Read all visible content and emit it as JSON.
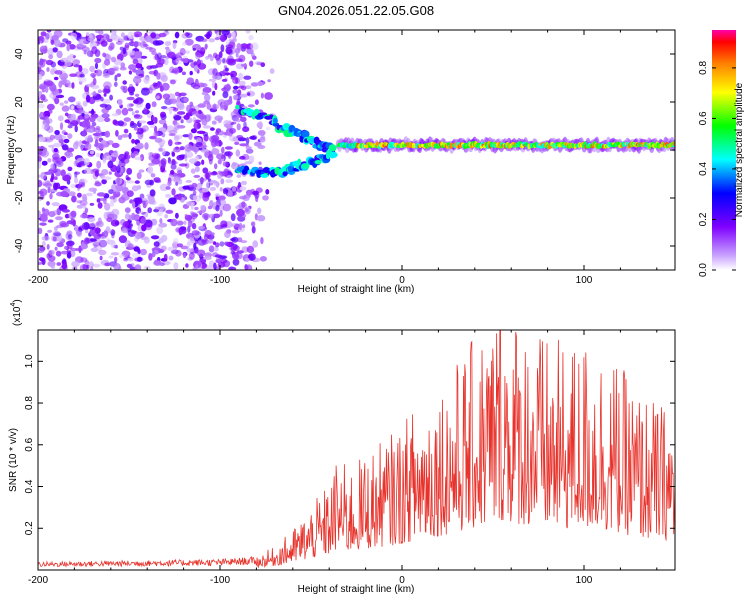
{
  "title": "GN04.2026.051.22.05.G08",
  "chart_data": [
    {
      "type": "heatmap",
      "name": "spectrogram",
      "xlabel": "Height of straight line (km)",
      "ylabel": "Frequency (Hz)",
      "xlim": [
        -200,
        150
      ],
      "ylim": [
        -50,
        50
      ],
      "xticks": [
        -200,
        -100,
        0,
        100
      ],
      "yticks": [
        40,
        20,
        0,
        -20,
        -40
      ],
      "colorbar": {
        "label": "Normalized spectral amplitude",
        "range": [
          0.0,
          0.95
        ],
        "ticks": [
          0.8,
          0.6,
          0.4,
          0.2,
          0.0
        ],
        "colors": [
          "#ffffff",
          "#7f00ff",
          "#0000ff",
          "#00ffff",
          "#00ff00",
          "#ffff00",
          "#ff8000",
          "#ff0000",
          "#ff00aa"
        ]
      },
      "features": [
        {
          "name": "noise scatter",
          "x_range": [
            -200,
            -70
          ],
          "y_range": [
            -50,
            50
          ],
          "amplitude": 0.1
        },
        {
          "name": "upper branch",
          "points": [
            [
              -90,
              18
            ],
            [
              -75,
              14
            ],
            [
              -65,
              9
            ],
            [
              -55,
              6
            ],
            [
              -45,
              2
            ],
            [
              -38,
              0
            ]
          ]
        },
        {
          "name": "lower branch",
          "points": [
            [
              -90,
              -8
            ],
            [
              -75,
              -10
            ],
            [
              -65,
              -9
            ],
            [
              -55,
              -6
            ],
            [
              -45,
              -4
            ],
            [
              -38,
              -2
            ]
          ]
        },
        {
          "name": "direct signal",
          "x_range": [
            -35,
            150
          ],
          "frequency": 2
        }
      ]
    },
    {
      "type": "line",
      "name": "snr",
      "xlabel": "Height of straight line (km)",
      "ylabel": "SNR (10 * v/v)",
      "scale_label": "(x10",
      "scale_exponent": "4",
      "xlim": [
        -200,
        150
      ],
      "ylim": [
        0,
        1.15
      ],
      "xticks": [
        -200,
        -100,
        0,
        100
      ],
      "yticks": [
        0.2,
        0.4,
        0.6,
        0.8,
        1.0
      ],
      "color": "#e8332c",
      "envelope": [
        [
          -200,
          0.03
        ],
        [
          -150,
          0.035
        ],
        [
          -100,
          0.04
        ],
        [
          -80,
          0.05
        ],
        [
          -70,
          0.08
        ],
        [
          -60,
          0.14
        ],
        [
          -50,
          0.22
        ],
        [
          -40,
          0.3
        ],
        [
          -35,
          0.4
        ],
        [
          -30,
          0.35
        ],
        [
          -20,
          0.4
        ],
        [
          -10,
          0.45
        ],
        [
          0,
          0.5
        ],
        [
          10,
          0.6
        ],
        [
          20,
          0.65
        ],
        [
          30,
          0.72
        ],
        [
          40,
          0.8
        ],
        [
          50,
          0.88
        ],
        [
          55,
          0.95
        ],
        [
          60,
          0.9
        ],
        [
          70,
          0.85
        ],
        [
          80,
          0.8
        ],
        [
          90,
          0.78
        ],
        [
          100,
          0.8
        ],
        [
          110,
          0.78
        ],
        [
          120,
          0.7
        ],
        [
          130,
          0.62
        ],
        [
          140,
          0.58
        ],
        [
          150,
          0.55
        ]
      ]
    }
  ]
}
